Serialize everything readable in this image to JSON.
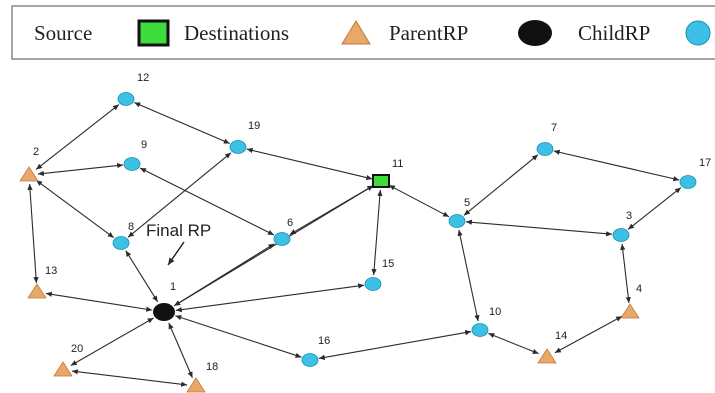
{
  "legend": {
    "items": [
      {
        "label": "Source",
        "symbol": "none"
      },
      {
        "label": "Destinations",
        "symbol": "green-square"
      },
      {
        "label": "ParentRP",
        "symbol": "orange-triangle"
      },
      {
        "label": "ChildRP",
        "symbol": "black-ellipse"
      },
      {
        "label": "",
        "symbol": "cyan-circle"
      }
    ]
  },
  "callout": {
    "text": "Final RP"
  },
  "colors": {
    "destination": "#3ddc3d",
    "parent_rp": "#e8a86a",
    "child_rp": "#111111",
    "node": "#3cc0e6"
  },
  "nodes": [
    {
      "id": "1",
      "label": "1",
      "type": "child"
    },
    {
      "id": "2",
      "label": "2",
      "type": "parent"
    },
    {
      "id": "3",
      "label": "3",
      "type": "node"
    },
    {
      "id": "4",
      "label": "4",
      "type": "parent"
    },
    {
      "id": "5",
      "label": "5",
      "type": "node"
    },
    {
      "id": "6",
      "label": "6",
      "type": "node"
    },
    {
      "id": "7",
      "label": "7",
      "type": "node"
    },
    {
      "id": "8",
      "label": "8",
      "type": "node"
    },
    {
      "id": "9",
      "label": "9",
      "type": "node"
    },
    {
      "id": "10",
      "label": "10",
      "type": "node"
    },
    {
      "id": "11",
      "label": "11",
      "type": "destination"
    },
    {
      "id": "12",
      "label": "12",
      "type": "node"
    },
    {
      "id": "13",
      "label": "13",
      "type": "parent"
    },
    {
      "id": "14",
      "label": "14",
      "type": "parent"
    },
    {
      "id": "15",
      "label": "15",
      "type": "node"
    },
    {
      "id": "16",
      "label": "16",
      "type": "node"
    },
    {
      "id": "17",
      "label": "17",
      "type": "node"
    },
    {
      "id": "18",
      "label": "18",
      "type": "parent"
    },
    {
      "id": "19",
      "label": "19",
      "type": "node"
    },
    {
      "id": "20",
      "label": "20",
      "type": "parent"
    }
  ],
  "edges": [
    [
      "2",
      "12"
    ],
    [
      "12",
      "19"
    ],
    [
      "2",
      "9"
    ],
    [
      "9",
      "6"
    ],
    [
      "2",
      "8"
    ],
    [
      "8",
      "19"
    ],
    [
      "19",
      "11"
    ],
    [
      "11",
      "6"
    ],
    [
      "6",
      "1"
    ],
    [
      "8",
      "1"
    ],
    [
      "2",
      "13"
    ],
    [
      "13",
      "1"
    ],
    [
      "1",
      "11"
    ],
    [
      "1",
      "15"
    ],
    [
      "15",
      "11"
    ],
    [
      "11",
      "5"
    ],
    [
      "5",
      "7"
    ],
    [
      "7",
      "17"
    ],
    [
      "17",
      "3"
    ],
    [
      "5",
      "3"
    ],
    [
      "3",
      "4"
    ],
    [
      "4",
      "14"
    ],
    [
      "14",
      "10"
    ],
    [
      "10",
      "5"
    ],
    [
      "10",
      "16"
    ],
    [
      "1",
      "16"
    ],
    [
      "1",
      "18"
    ],
    [
      "1",
      "20"
    ],
    [
      "20",
      "18"
    ]
  ]
}
